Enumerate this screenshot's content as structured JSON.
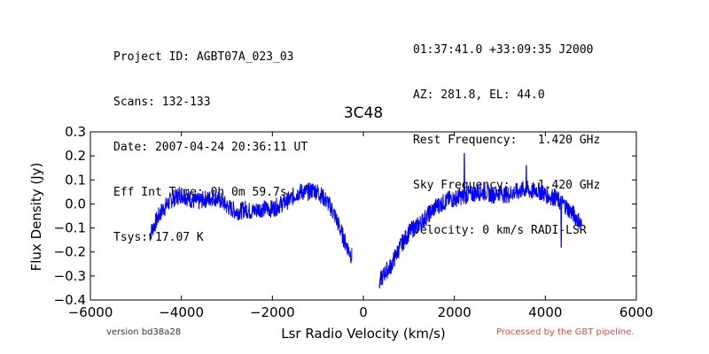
{
  "header_left": [
    "Project ID: AGBT07A_023_03",
    "Scans: 132-133",
    "Date: 2007-04-24 20:36:11 UT",
    "Eff Int Time: 0h 0m 59.7s",
    "Tsys: 17.07 K"
  ],
  "header_right": [
    "01:37:41.0 +33:09:35 J2000",
    "AZ: 281.8, EL: 44.0",
    "Rest Frequency:   1.420 GHz",
    "Sky Frequency:    1.420 GHz",
    "Velocity: 0 km/s RADI-LSR"
  ],
  "footer": {
    "version": "version bd38a28",
    "processed": "Processed by the GBT pipeline."
  },
  "colors": {
    "series": "#0000ff",
    "processed_text": "#ee4444"
  },
  "chart_data": {
    "type": "line",
    "title": "3C48",
    "xlabel": "Lsr Radio Velocity (km/s)",
    "ylabel": "Flux Density (Jy)",
    "xlim": [
      -6000,
      6000
    ],
    "ylim": [
      -0.4,
      0.3
    ],
    "xticks": [
      "−6000",
      "−4000",
      "−2000",
      "0",
      "2000",
      "4000",
      "6000"
    ],
    "yticks": [
      "−0.4",
      "−0.3",
      "−0.2",
      "−0.1",
      "0.0",
      "0.1",
      "0.2",
      "0.3"
    ],
    "grid": false,
    "series": [
      {
        "x": [
          -4700,
          -4600,
          -4500,
          -4400,
          -4300,
          -4200,
          -4100,
          -4000,
          -3900,
          -3800,
          -3700,
          -3600,
          -3500,
          -3400,
          -3300,
          -3200,
          -3100,
          -3000,
          -2900,
          -2800,
          -2700,
          -2600,
          -2500,
          -2400,
          -2300,
          -2200,
          -2100,
          -2000,
          -1900,
          -1800,
          -1700,
          -1600,
          -1500,
          -1400,
          -1300,
          -1200,
          -1100,
          -1000,
          -900,
          -800,
          -700,
          -600,
          -500,
          -400,
          -350,
          -300,
          -250,
          350,
          400,
          500,
          600,
          700,
          800,
          900,
          1000,
          1100,
          1200,
          1300,
          1400,
          1500,
          1600,
          1700,
          1800,
          1900,
          2000,
          2100,
          2200,
          2300,
          2400,
          2500,
          2600,
          2700,
          2800,
          2900,
          3000,
          3100,
          3200,
          3300,
          3400,
          3500,
          3600,
          3700,
          3800,
          3900,
          4000,
          4100,
          4200,
          4300,
          4400,
          4500,
          4600,
          4700,
          4800
        ],
        "y": [
          -0.13,
          -0.09,
          -0.05,
          -0.02,
          0.0,
          0.02,
          0.03,
          0.04,
          0.03,
          0.02,
          0.01,
          0.01,
          0.02,
          0.02,
          0.03,
          0.02,
          0.01,
          -0.01,
          -0.02,
          -0.03,
          -0.03,
          -0.02,
          -0.03,
          -0.03,
          -0.02,
          -0.02,
          -0.02,
          -0.02,
          -0.01,
          0.0,
          0.01,
          0.02,
          0.04,
          0.05,
          0.05,
          0.05,
          0.06,
          0.05,
          0.03,
          0.01,
          -0.02,
          -0.06,
          -0.11,
          -0.16,
          -0.18,
          -0.2,
          -0.22,
          -0.33,
          -0.31,
          -0.28,
          -0.26,
          -0.22,
          -0.18,
          -0.15,
          -0.12,
          -0.1,
          -0.09,
          -0.07,
          -0.05,
          -0.03,
          -0.01,
          0.0,
          0.01,
          0.02,
          0.02,
          0.03,
          0.03,
          0.04,
          0.04,
          0.05,
          0.05,
          0.05,
          0.04,
          0.04,
          0.05,
          0.04,
          0.04,
          0.05,
          0.05,
          0.06,
          0.06,
          0.05,
          0.06,
          0.05,
          0.04,
          0.03,
          0.03,
          0.01,
          0.0,
          -0.02,
          -0.04,
          -0.06,
          -0.09
        ]
      }
    ],
    "spikes": [
      {
        "x": 2220,
        "y": 0.21
      },
      {
        "x": 3580,
        "y": 0.16
      },
      {
        "x": 4350,
        "y": -0.18
      }
    ]
  }
}
